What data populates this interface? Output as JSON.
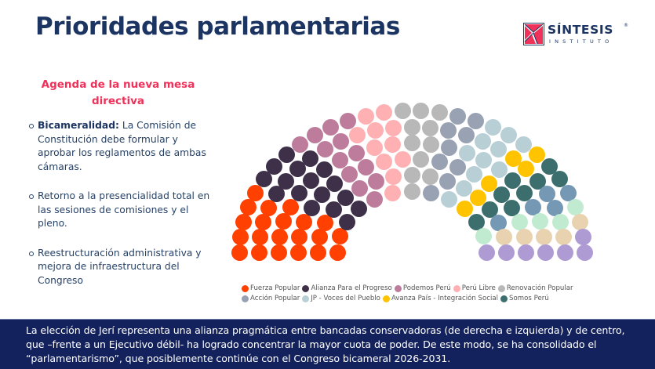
{
  "header": {
    "title": "Prioridades parlamentarias",
    "logo": {
      "name": "SÍNTESIS",
      "registered": "®",
      "subtitle": "INSTITUTO"
    }
  },
  "agenda": {
    "heading": "Agenda de la nueva mesa directiva",
    "items": [
      {
        "bold": "Bicameralidad:",
        "text": " La Comisión de Constitución debe formular y aprobar los reglamentos de ambas cámaras."
      },
      {
        "bold": "",
        "text": "Retorno a la presencialidad total en las sesiones de comisiones y el pleno."
      },
      {
        "bold": "",
        "text": "Reestructuración administrativa y mejora de infraestructura del Congreso"
      }
    ]
  },
  "footer": {
    "text": "La elección de Jerí representa una alianza pragmática entre bancadas conservadoras (de derecha e izquierda) y de centro, que –frente a un Ejecutivo débil- ha logrado concentrar la mayor cuota de poder. De este modo, se ha consolidado el “parlamentarismo”, que posiblemente continúe con el Congreso bicameral 2026-2031."
  },
  "chart_data": {
    "type": "hemicycle",
    "title": "",
    "total_seats": 130,
    "legend_position": "bottom",
    "series": [
      {
        "name": "Fuerza Popular",
        "seats": 21,
        "color": "#ff4000",
        "in_legend": true
      },
      {
        "name": "Alianza Para el Progreso",
        "seats": 17,
        "color": "#3e3049",
        "in_legend": true
      },
      {
        "name": "Podemos Perú",
        "seats": 13,
        "color": "#be7c9c",
        "in_legend": true
      },
      {
        "name": "Perú Libre",
        "seats": 11,
        "color": "#ffb0b3",
        "in_legend": true
      },
      {
        "name": "Renovación Popular",
        "seats": 11,
        "color": "#b8b8b8",
        "in_legend": true
      },
      {
        "name": "Acción Popular",
        "seats": 9,
        "color": "#98a2b3",
        "in_legend": true
      },
      {
        "name": "JP - Voces del Pueblo",
        "seats": 11,
        "color": "#b8cfd6",
        "in_legend": true
      },
      {
        "name": "Avanza País - Integración Social",
        "seats": 6,
        "color": "#ffc300",
        "in_legend": true
      },
      {
        "name": "Somos Perú",
        "seats": 9,
        "color": "#3c6e6e",
        "in_legend": true
      },
      {
        "name": "",
        "seats": 5,
        "color": "#7598b4",
        "in_legend": false
      },
      {
        "name": "",
        "seats": 5,
        "color": "#c1ebd0",
        "in_legend": false
      },
      {
        "name": "",
        "seats": 5,
        "color": "#e8d2b0",
        "in_legend": false
      },
      {
        "name": "",
        "seats": 7,
        "color": "#ae9bd4",
        "in_legend": false
      }
    ],
    "legend_rows": [
      [
        "Fuerza Popular",
        "Alianza Para el Progreso",
        "Podemos Perú",
        "Perú Libre",
        "Renovación Popular"
      ],
      [
        "Acción Popular",
        "JP - Voces del Pueblo",
        "Avanza País - Integración Social",
        "Somos Perú"
      ]
    ]
  },
  "colors": {
    "title": "#1b3461",
    "accent": "#f0315a",
    "footer_bg": "#13225c"
  }
}
